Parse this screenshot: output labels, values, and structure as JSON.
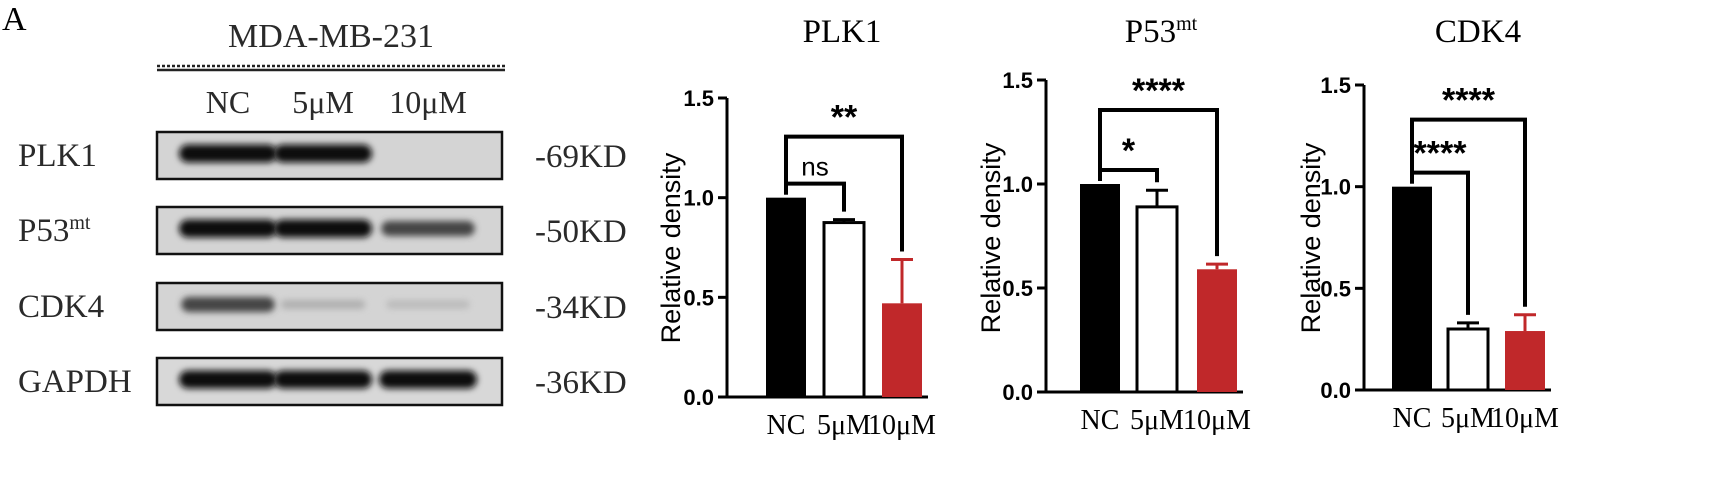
{
  "panel_label": "A",
  "blot": {
    "cell_line": "MDA-MB-231",
    "lanes": [
      "NC",
      "5μM",
      "10μM"
    ],
    "rows": [
      {
        "protein": "PLK1",
        "sup": "",
        "size": "-69KD",
        "band_intensity": [
          1.0,
          1.0,
          0.0
        ]
      },
      {
        "protein": "P53",
        "sup": "mt",
        "size": "-50KD",
        "band_intensity": [
          1.0,
          1.0,
          0.75
        ]
      },
      {
        "protein": "CDK4",
        "sup": "",
        "size": "-34KD",
        "band_intensity": [
          0.75,
          0.25,
          0.2
        ]
      },
      {
        "protein": "GAPDH",
        "sup": "",
        "size": "-36KD",
        "band_intensity": [
          1.0,
          1.0,
          1.0
        ]
      }
    ]
  },
  "colors": {
    "nc": "#000000",
    "mid": "#ffffff",
    "high": "#c0282a",
    "axis": "#000000"
  },
  "chart_data": [
    {
      "type": "bar",
      "title": "PLK1",
      "title_sup": "",
      "ylabel": "Relative density",
      "categories": [
        "NC",
        "5μM",
        "10μM"
      ],
      "values": [
        1.0,
        0.875,
        0.47
      ],
      "errors": [
        0,
        0.015,
        0.22
      ],
      "ylim": [
        0,
        1.5
      ],
      "yticks": [
        "0.0",
        "0.5",
        "1.0",
        "1.5"
      ],
      "significance": [
        {
          "from": 0,
          "to": 1,
          "label": "ns"
        },
        {
          "from": 0,
          "to": 2,
          "label": "**"
        }
      ]
    },
    {
      "type": "bar",
      "title": "P53",
      "title_sup": "mt",
      "ylabel": "Relative density",
      "categories": [
        "NC",
        "5μM",
        "10μM"
      ],
      "values": [
        1.0,
        0.89,
        0.59
      ],
      "errors": [
        0,
        0.08,
        0.025
      ],
      "ylim": [
        0,
        1.5
      ],
      "yticks": [
        "0.0",
        "0.5",
        "1.0",
        "1.5"
      ],
      "significance": [
        {
          "from": 0,
          "to": 1,
          "label": "*"
        },
        {
          "from": 0,
          "to": 2,
          "label": "****"
        }
      ]
    },
    {
      "type": "bar",
      "title": "CDK4",
      "title_sup": "",
      "ylabel": "Relative density",
      "categories": [
        "NC",
        "5μM",
        "10μM"
      ],
      "values": [
        1.0,
        0.3,
        0.29
      ],
      "errors": [
        0,
        0.03,
        0.08
      ],
      "ylim": [
        0,
        1.5
      ],
      "yticks": [
        "0.0",
        "0.5",
        "1.0",
        "1.5"
      ],
      "significance": [
        {
          "from": 0,
          "to": 1,
          "label": "****"
        },
        {
          "from": 0,
          "to": 2,
          "label": "****"
        }
      ]
    }
  ]
}
